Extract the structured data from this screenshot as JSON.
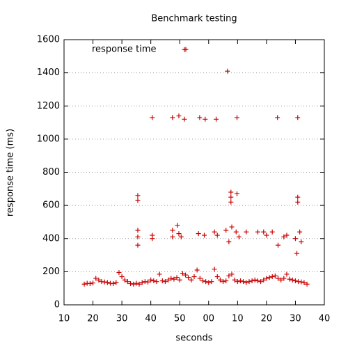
{
  "chart_data": {
    "type": "scatter",
    "title": "Benchmark testing",
    "xlabel": "seconds",
    "ylabel": "response time (ms)",
    "xlim": [
      10,
      100
    ],
    "xticks": [
      10,
      20,
      30,
      40,
      50,
      {
        "value": 60,
        "label": "00"
      },
      {
        "value": 70,
        "label": "10"
      },
      {
        "value": 80,
        "label": "20"
      },
      {
        "value": 90,
        "label": "30"
      },
      {
        "value": 100,
        "label": "40"
      }
    ],
    "ylim": [
      0,
      1600
    ],
    "yticks": [
      0,
      200,
      400,
      600,
      800,
      1000,
      1200,
      1400,
      1600
    ],
    "grid": true,
    "legend": "top-left",
    "series": [
      {
        "name": "response time",
        "color": "#cc0000",
        "x": [
          17,
          18,
          19,
          20,
          21,
          22,
          23,
          24,
          25,
          26,
          27,
          28,
          29,
          30,
          31,
          32,
          33,
          34,
          35,
          36,
          37,
          38,
          39,
          40,
          41,
          42,
          43,
          44,
          45,
          46,
          47,
          48,
          49,
          50,
          51,
          52,
          53,
          54,
          55,
          56,
          57,
          58,
          59,
          60,
          61,
          62,
          63,
          64,
          65,
          66,
          67,
          68,
          69,
          70,
          71,
          72,
          73,
          74,
          75,
          76,
          77,
          78,
          79,
          80,
          81,
          82,
          83,
          84,
          85,
          86,
          87,
          88,
          89,
          90,
          91,
          92,
          93,
          94,
          51.6,
          66.5,
          40.5,
          47.5,
          49.7,
          51.6,
          56.9,
          58.8,
          62.6,
          69.8,
          83.8,
          90.8,
          35.5,
          35.5,
          67.7,
          67.7,
          67.7,
          69.8,
          90.8,
          90.8,
          35.5,
          35.5,
          35.5,
          40.5,
          40.5,
          47.5,
          47.5,
          49.2,
          49.7,
          50.5,
          56.5,
          58.5,
          62,
          63,
          66,
          67,
          68,
          69.5,
          70.5,
          73,
          77,
          79,
          80,
          82,
          84,
          86,
          87,
          90,
          90.5,
          91.5,
          92
        ],
        "values": [
          125,
          130,
          128,
          132,
          160,
          150,
          140,
          138,
          135,
          130,
          128,
          135,
          195,
          170,
          150,
          140,
          128,
          125,
          130,
          125,
          135,
          140,
          138,
          150,
          145,
          140,
          185,
          145,
          140,
          150,
          160,
          155,
          165,
          150,
          190,
          180,
          165,
          150,
          170,
          210,
          160,
          145,
          140,
          135,
          140,
          215,
          170,
          150,
          140,
          145,
          175,
          185,
          150,
          140,
          145,
          140,
          135,
          140,
          145,
          150,
          145,
          140,
          150,
          160,
          165,
          170,
          175,
          160,
          150,
          160,
          185,
          155,
          150,
          145,
          140,
          138,
          135,
          125,
          1540,
          1410,
          1130,
          1130,
          1140,
          1120,
          1130,
          1120,
          1120,
          1130,
          1130,
          1130,
          660,
          630,
          680,
          650,
          620,
          670,
          650,
          620,
          450,
          410,
          360,
          420,
          400,
          450,
          410,
          480,
          430,
          410,
          430,
          420,
          440,
          420,
          450,
          380,
          470,
          440,
          410,
          440,
          440,
          440,
          420,
          440,
          360,
          410,
          420,
          400,
          310,
          440,
          380
        ]
      }
    ]
  }
}
